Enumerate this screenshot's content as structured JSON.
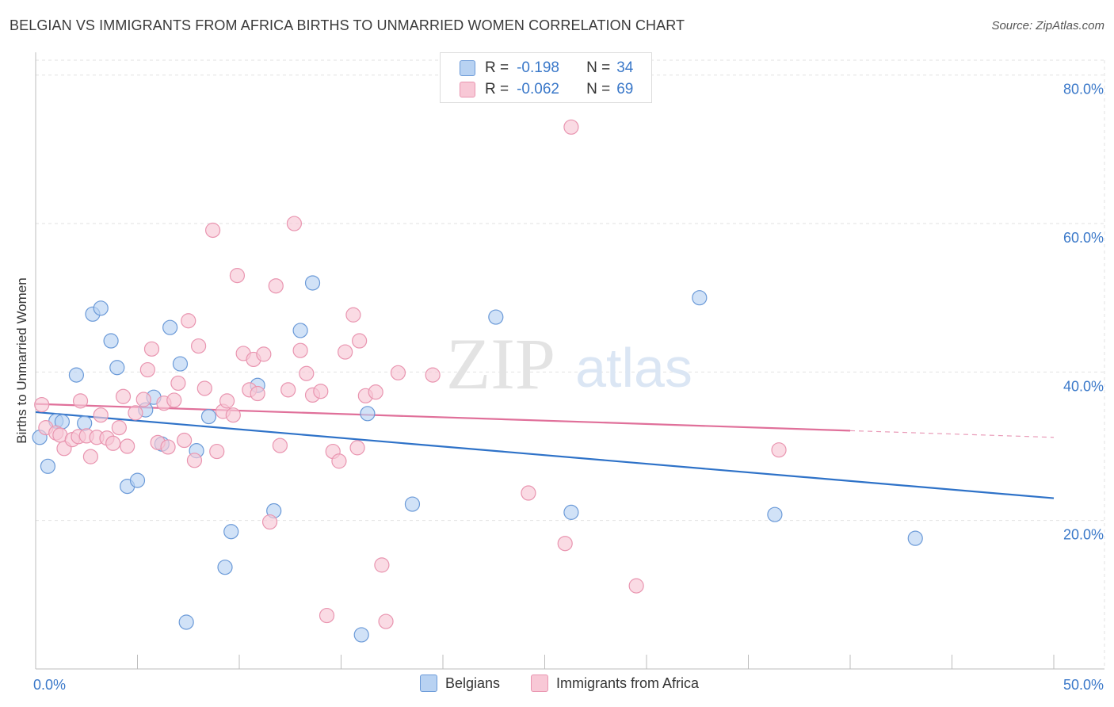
{
  "header": {
    "title": "BELGIAN VS IMMIGRANTS FROM AFRICA BIRTHS TO UNMARRIED WOMEN CORRELATION CHART",
    "source": "Source: ZipAtlas.com"
  },
  "watermark": {
    "zip": "ZIP",
    "atlas": "atlas"
  },
  "legend_stats": [
    {
      "r_label": "R =",
      "r_value": "-0.198",
      "n_label": "N =",
      "n_value": "34",
      "color": "#a8c8f0"
    },
    {
      "r_label": "R =",
      "r_value": "-0.062",
      "n_label": "N =",
      "n_value": "69",
      "color": "#f6b8ca"
    }
  ],
  "colors": {
    "belgians_fill": "#b8d2f2",
    "belgians_stroke": "#6b9ad8",
    "belgians_line": "#2e72c8",
    "africa_fill": "#f8c8d6",
    "africa_stroke": "#e995b0",
    "africa_line": "#e0709a",
    "tick_label": "#3a78c9",
    "grid": "#e2e2e2"
  },
  "chart_data": {
    "type": "scatter",
    "title": "BELGIAN VS IMMIGRANTS FROM AFRICA BIRTHS TO UNMARRIED WOMEN CORRELATION CHART",
    "xlabel": "",
    "ylabel": "Births to Unmarried Women",
    "xlim": [
      0,
      50
    ],
    "ylim": [
      0,
      82
    ],
    "x_tick_labels": [
      "0.0%",
      "50.0%"
    ],
    "y_ticks": [
      20,
      40,
      60,
      80
    ],
    "y_tick_labels": [
      "20.0%",
      "40.0%",
      "60.0%",
      "80.0%"
    ],
    "grid": true,
    "legend_position": "bottom",
    "series": [
      {
        "name": "Belgians",
        "trend": {
          "x": [
            0,
            50
          ],
          "y": [
            34.6,
            23.0
          ],
          "dashed_from": null
        },
        "points": [
          [
            0.2,
            31.2
          ],
          [
            0.6,
            27.3
          ],
          [
            1.0,
            33.4
          ],
          [
            1.3,
            33.3
          ],
          [
            2.0,
            39.6
          ],
          [
            2.4,
            33.1
          ],
          [
            2.8,
            47.8
          ],
          [
            3.2,
            48.6
          ],
          [
            3.7,
            44.2
          ],
          [
            4.0,
            40.6
          ],
          [
            4.5,
            24.6
          ],
          [
            5.0,
            25.4
          ],
          [
            5.4,
            34.9
          ],
          [
            5.8,
            36.6
          ],
          [
            6.2,
            30.3
          ],
          [
            6.6,
            46.0
          ],
          [
            7.1,
            41.1
          ],
          [
            7.4,
            6.3
          ],
          [
            7.9,
            29.4
          ],
          [
            8.5,
            34.0
          ],
          [
            9.3,
            13.7
          ],
          [
            9.6,
            18.5
          ],
          [
            10.9,
            38.2
          ],
          [
            11.7,
            21.3
          ],
          [
            13.0,
            45.6
          ],
          [
            13.6,
            52.0
          ],
          [
            16.0,
            4.6
          ],
          [
            16.3,
            34.4
          ],
          [
            18.5,
            22.2
          ],
          [
            22.6,
            47.4
          ],
          [
            26.3,
            21.1
          ],
          [
            32.6,
            50.0
          ],
          [
            36.3,
            20.8
          ],
          [
            43.2,
            17.6
          ]
        ]
      },
      {
        "name": "Immigrants from Africa",
        "trend": {
          "x": [
            0,
            50
          ],
          "y": [
            35.7,
            31.2
          ],
          "dashed_from": 40
        },
        "points": [
          [
            0.3,
            35.6
          ],
          [
            0.5,
            32.5
          ],
          [
            1.0,
            31.8
          ],
          [
            1.2,
            31.5
          ],
          [
            1.4,
            29.7
          ],
          [
            1.8,
            30.9
          ],
          [
            2.1,
            31.3
          ],
          [
            2.2,
            36.1
          ],
          [
            2.5,
            31.4
          ],
          [
            2.7,
            28.6
          ],
          [
            3.0,
            31.2
          ],
          [
            3.2,
            34.2
          ],
          [
            3.5,
            31.1
          ],
          [
            3.8,
            30.4
          ],
          [
            4.1,
            32.5
          ],
          [
            4.3,
            36.7
          ],
          [
            4.5,
            30.0
          ],
          [
            4.9,
            34.5
          ],
          [
            5.3,
            36.3
          ],
          [
            5.5,
            40.3
          ],
          [
            5.7,
            43.1
          ],
          [
            6.0,
            30.5
          ],
          [
            6.3,
            35.8
          ],
          [
            6.5,
            29.9
          ],
          [
            6.8,
            36.2
          ],
          [
            7.0,
            38.5
          ],
          [
            7.3,
            30.8
          ],
          [
            7.5,
            46.9
          ],
          [
            7.8,
            28.1
          ],
          [
            8.0,
            43.5
          ],
          [
            8.3,
            37.8
          ],
          [
            8.7,
            59.1
          ],
          [
            8.9,
            29.3
          ],
          [
            9.2,
            34.7
          ],
          [
            9.4,
            36.1
          ],
          [
            9.7,
            34.2
          ],
          [
            9.9,
            53.0
          ],
          [
            10.2,
            42.5
          ],
          [
            10.5,
            37.6
          ],
          [
            10.7,
            41.7
          ],
          [
            10.9,
            37.1
          ],
          [
            11.2,
            42.4
          ],
          [
            11.5,
            19.8
          ],
          [
            11.8,
            51.6
          ],
          [
            12.0,
            30.1
          ],
          [
            12.4,
            37.6
          ],
          [
            12.7,
            60.0
          ],
          [
            13.0,
            42.9
          ],
          [
            13.3,
            39.8
          ],
          [
            13.6,
            36.9
          ],
          [
            14.0,
            37.4
          ],
          [
            14.3,
            7.2
          ],
          [
            14.6,
            29.3
          ],
          [
            14.9,
            28.0
          ],
          [
            15.2,
            42.7
          ],
          [
            15.6,
            47.7
          ],
          [
            15.9,
            44.2
          ],
          [
            16.2,
            36.8
          ],
          [
            16.7,
            37.3
          ],
          [
            17.0,
            14.0
          ],
          [
            17.2,
            6.4
          ],
          [
            17.8,
            39.9
          ],
          [
            19.5,
            39.6
          ],
          [
            24.2,
            23.7
          ],
          [
            26.0,
            16.9
          ],
          [
            26.3,
            73.0
          ],
          [
            29.5,
            11.2
          ],
          [
            36.5,
            29.5
          ],
          [
            15.8,
            29.8
          ]
        ]
      }
    ]
  },
  "legend_bottom": [
    {
      "label": "Belgians"
    },
    {
      "label": "Immigrants from Africa"
    }
  ]
}
